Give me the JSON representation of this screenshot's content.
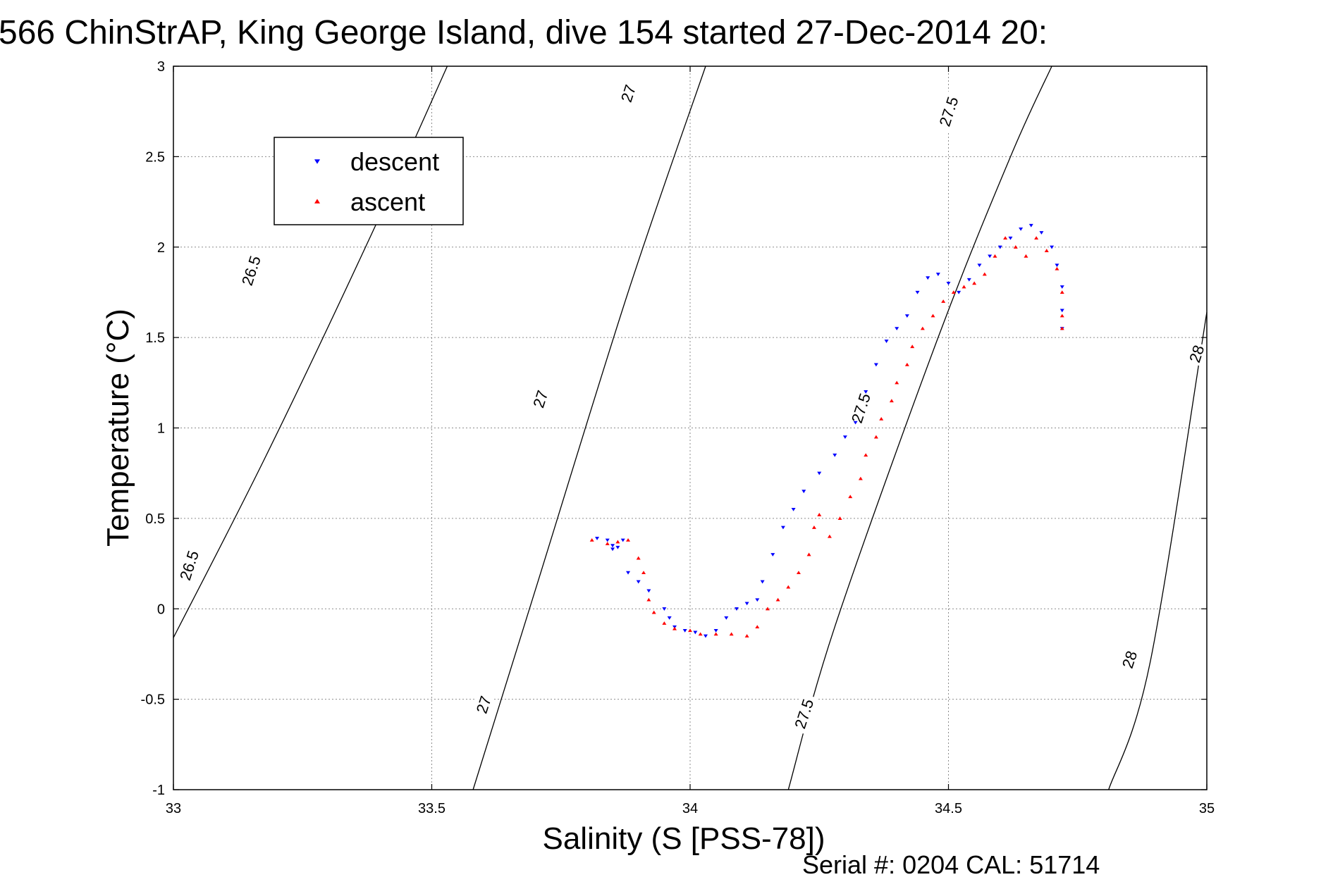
{
  "chart_data": {
    "type": "scatter",
    "title": "566 ChinStrAP, King George Island, dive 154 started 27-Dec-2014 20:",
    "xlabel": "Salinity (S [PSS-78])",
    "ylabel": "Temperature (°C)",
    "footer": "Serial #: 0204  CAL: 51714",
    "xlim": [
      33,
      35
    ],
    "ylim": [
      -1,
      3
    ],
    "x_ticks": [
      "33",
      "33.5",
      "34",
      "34.5",
      "35"
    ],
    "y_ticks": [
      "-1",
      "-0.5",
      "0",
      "0.5",
      "1",
      "1.5",
      "2",
      "2.5",
      "3"
    ],
    "grid": true,
    "legend_position": "top-left",
    "legend": [
      {
        "label": "descent",
        "color": "#0000ff",
        "marker": "triangle-down"
      },
      {
        "label": "ascent",
        "color": "#ff0000",
        "marker": "triangle-up"
      }
    ],
    "density_contours": [
      {
        "label": "26.5",
        "points": [
          [
            33.0,
            -0.16
          ],
          [
            33.18,
            0.85
          ],
          [
            33.38,
            2.05
          ],
          [
            33.53,
            3.0
          ]
        ]
      },
      {
        "label": "27",
        "points": [
          [
            33.58,
            -1.0
          ],
          [
            33.7,
            0.1
          ],
          [
            33.88,
            1.75
          ],
          [
            34.03,
            3.0
          ]
        ]
      },
      {
        "label": "27.5",
        "points": [
          [
            34.19,
            -1.0
          ],
          [
            34.28,
            -0.1
          ],
          [
            34.48,
            1.5
          ],
          [
            34.62,
            2.5
          ],
          [
            34.7,
            3.0
          ]
        ]
      },
      {
        "label": "28",
        "points": [
          [
            34.81,
            -1.0
          ],
          [
            34.89,
            -0.3
          ],
          [
            35.0,
            1.64
          ]
        ]
      }
    ],
    "contour_labels": [
      {
        "text": "26.5",
        "x": 33.15,
        "y": 1.87
      },
      {
        "text": "26.5",
        "x": 33.03,
        "y": 0.24
      },
      {
        "text": "27",
        "x": 33.88,
        "y": 2.85
      },
      {
        "text": "27",
        "x": 33.71,
        "y": 1.16
      },
      {
        "text": "27",
        "x": 33.6,
        "y": -0.53
      },
      {
        "text": "27.5",
        "x": 34.5,
        "y": 2.75
      },
      {
        "text": "27.5",
        "x": 34.33,
        "y": 1.11
      },
      {
        "text": "27.5",
        "x": 34.22,
        "y": -0.58
      },
      {
        "text": "28",
        "x": 34.98,
        "y": 1.41
      },
      {
        "text": "28",
        "x": 34.85,
        "y": -0.28
      }
    ],
    "series": [
      {
        "name": "descent",
        "color": "#0000ff",
        "marker": "triangle-down",
        "points": [
          [
            33.82,
            0.39
          ],
          [
            33.84,
            0.38
          ],
          [
            33.85,
            0.35
          ],
          [
            33.85,
            0.33
          ],
          [
            33.86,
            0.34
          ],
          [
            33.87,
            0.38
          ],
          [
            33.88,
            0.2
          ],
          [
            33.9,
            0.15
          ],
          [
            33.92,
            0.1
          ],
          [
            33.95,
            0.0
          ],
          [
            33.96,
            -0.05
          ],
          [
            33.97,
            -0.1
          ],
          [
            33.99,
            -0.12
          ],
          [
            34.01,
            -0.13
          ],
          [
            34.03,
            -0.15
          ],
          [
            34.05,
            -0.12
          ],
          [
            34.07,
            -0.05
          ],
          [
            34.09,
            0.0
          ],
          [
            34.11,
            0.03
          ],
          [
            34.13,
            0.05
          ],
          [
            34.14,
            0.15
          ],
          [
            34.16,
            0.3
          ],
          [
            34.18,
            0.45
          ],
          [
            34.2,
            0.55
          ],
          [
            34.22,
            0.65
          ],
          [
            34.25,
            0.75
          ],
          [
            34.28,
            0.85
          ],
          [
            34.3,
            0.95
          ],
          [
            34.32,
            1.03
          ],
          [
            34.34,
            1.2
          ],
          [
            34.36,
            1.35
          ],
          [
            34.38,
            1.48
          ],
          [
            34.4,
            1.55
          ],
          [
            34.42,
            1.62
          ],
          [
            34.44,
            1.75
          ],
          [
            34.46,
            1.83
          ],
          [
            34.48,
            1.85
          ],
          [
            34.5,
            1.8
          ],
          [
            34.52,
            1.75
          ],
          [
            34.54,
            1.82
          ],
          [
            34.56,
            1.9
          ],
          [
            34.58,
            1.95
          ],
          [
            34.6,
            2.0
          ],
          [
            34.62,
            2.05
          ],
          [
            34.64,
            2.1
          ],
          [
            34.66,
            2.12
          ],
          [
            34.68,
            2.08
          ],
          [
            34.7,
            2.0
          ],
          [
            34.71,
            1.9
          ],
          [
            34.72,
            1.78
          ],
          [
            34.72,
            1.65
          ],
          [
            34.72,
            1.55
          ]
        ]
      },
      {
        "name": "ascent",
        "color": "#ff0000",
        "marker": "triangle-up",
        "points": [
          [
            33.81,
            0.38
          ],
          [
            33.84,
            0.36
          ],
          [
            33.86,
            0.37
          ],
          [
            33.88,
            0.38
          ],
          [
            33.9,
            0.28
          ],
          [
            33.91,
            0.2
          ],
          [
            33.92,
            0.05
          ],
          [
            33.93,
            -0.02
          ],
          [
            33.95,
            -0.08
          ],
          [
            33.97,
            -0.11
          ],
          [
            34.0,
            -0.12
          ],
          [
            34.02,
            -0.14
          ],
          [
            34.05,
            -0.14
          ],
          [
            34.08,
            -0.14
          ],
          [
            34.11,
            -0.15
          ],
          [
            34.13,
            -0.1
          ],
          [
            34.15,
            0.0
          ],
          [
            34.17,
            0.05
          ],
          [
            34.19,
            0.12
          ],
          [
            34.21,
            0.2
          ],
          [
            34.23,
            0.3
          ],
          [
            34.24,
            0.45
          ],
          [
            34.25,
            0.52
          ],
          [
            34.27,
            0.4
          ],
          [
            34.29,
            0.5
          ],
          [
            34.31,
            0.62
          ],
          [
            34.33,
            0.72
          ],
          [
            34.34,
            0.85
          ],
          [
            34.36,
            0.95
          ],
          [
            34.37,
            1.05
          ],
          [
            34.39,
            1.15
          ],
          [
            34.4,
            1.25
          ],
          [
            34.42,
            1.35
          ],
          [
            34.43,
            1.45
          ],
          [
            34.45,
            1.55
          ],
          [
            34.47,
            1.62
          ],
          [
            34.49,
            1.7
          ],
          [
            34.51,
            1.75
          ],
          [
            34.53,
            1.78
          ],
          [
            34.55,
            1.8
          ],
          [
            34.57,
            1.85
          ],
          [
            34.59,
            1.95
          ],
          [
            34.61,
            2.05
          ],
          [
            34.63,
            2.0
          ],
          [
            34.65,
            1.95
          ],
          [
            34.67,
            2.05
          ],
          [
            34.69,
            1.98
          ],
          [
            34.71,
            1.88
          ],
          [
            34.72,
            1.75
          ],
          [
            34.72,
            1.62
          ],
          [
            34.72,
            1.55
          ]
        ]
      }
    ]
  }
}
